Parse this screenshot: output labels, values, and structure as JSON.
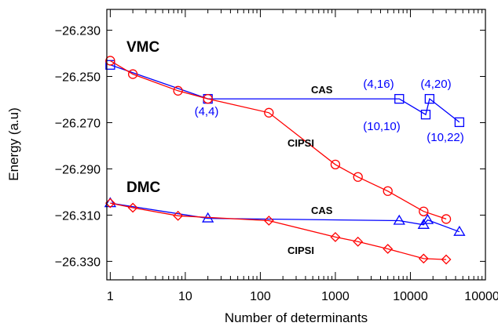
{
  "chart_data": {
    "type": "line",
    "xlabel": "Number of determinants",
    "ylabel": "Energy (a.u)",
    "x_scale": "log",
    "xlim": [
      0.9,
      100000
    ],
    "ylim": [
      -26.338,
      -26.221
    ],
    "x_ticks": [
      {
        "value": 1,
        "label": "1"
      },
      {
        "value": 10,
        "label": "10"
      },
      {
        "value": 100,
        "label": "100"
      },
      {
        "value": 1000,
        "label": "1000"
      },
      {
        "value": 10000,
        "label": "10000"
      },
      {
        "value": 100000,
        "label": "100000"
      }
    ],
    "y_ticks": [
      {
        "value": -26.23,
        "label": "−26.230"
      },
      {
        "value": -26.25,
        "label": "−26.250"
      },
      {
        "value": -26.27,
        "label": "−26.270"
      },
      {
        "value": -26.29,
        "label": "−26.290"
      },
      {
        "value": -26.31,
        "label": "−26.310"
      },
      {
        "value": -26.33,
        "label": "−26.330"
      }
    ],
    "grid": false,
    "group_labels": [
      "VMC",
      "DMC"
    ],
    "series": [
      {
        "name": "CAS",
        "group": "VMC",
        "color": "#0000ff",
        "marker": "square",
        "x": [
          1,
          20,
          7100,
          16000,
          18000,
          45000
        ],
        "y": [
          -26.245,
          -26.2597,
          -26.2597,
          -26.2665,
          -26.2597,
          -26.2698
        ]
      },
      {
        "name": "CIPSI",
        "group": "VMC",
        "color": "#ff0000",
        "marker": "circle",
        "x": [
          1,
          2,
          8,
          20,
          130,
          1000,
          2000,
          5000,
          15000,
          30000
        ],
        "y": [
          -26.2432,
          -26.249,
          -26.2562,
          -26.2597,
          -26.2657,
          -26.2881,
          -26.2935,
          -26.2996,
          -26.3084,
          -26.3117
        ]
      },
      {
        "name": "CAS",
        "group": "DMC",
        "color": "#0000ff",
        "marker": "triangle",
        "x": [
          1,
          20,
          7100,
          15000,
          17000,
          45000
        ],
        "y": [
          -26.3048,
          -26.3114,
          -26.3124,
          -26.3142,
          -26.3121,
          -26.3172
        ]
      },
      {
        "name": "CIPSI",
        "group": "DMC",
        "color": "#ff0000",
        "marker": "diamond",
        "x": [
          1,
          2,
          8,
          130,
          1000,
          2000,
          5000,
          15000,
          30000
        ],
        "y": [
          -26.3048,
          -26.3068,
          -26.3103,
          -26.3124,
          -26.3195,
          -26.3215,
          -26.3246,
          -26.3288,
          -26.3292
        ]
      }
    ],
    "point_labels": [
      {
        "text": "(4,4)",
        "x": 20,
        "y": -26.2597
      },
      {
        "text": "(4,16)",
        "x": 7100,
        "y": -26.2597
      },
      {
        "text": "(10,10)",
        "x": 16000,
        "y": -26.2665
      },
      {
        "text": "(4,20)",
        "x": 18000,
        "y": -26.2597
      },
      {
        "text": "(10,22)",
        "x": 45000,
        "y": -26.2698
      }
    ]
  }
}
